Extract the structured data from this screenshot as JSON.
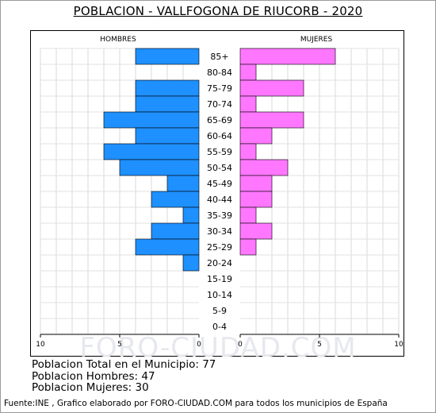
{
  "title": "POBLACION - VALLFOGONA DE RIUCORB - 2020",
  "watermark": "FORO-CIUDAD.COM",
  "stats": {
    "total": "Poblacion Total en el Municipio: 77",
    "men": "Poblacion Hombres: 47",
    "women": "Poblacion Mujeres: 30"
  },
  "footer": "Fuente:INE , Grafico elaborado por FORO-CIUDAD.COM para todos los municipios de España",
  "chart_data": {
    "type": "bar",
    "orientation": "horizontal",
    "title": "POBLACION - VALLFOGONA DE RIUCORB - 2020",
    "categories": [
      "85+",
      "80-84",
      "75-79",
      "70-74",
      "65-69",
      "60-64",
      "55-59",
      "50-54",
      "45-49",
      "40-44",
      "35-39",
      "30-34",
      "25-29",
      "20-24",
      "15-19",
      "10-14",
      "5-9",
      "0-4"
    ],
    "series": [
      {
        "name": "HOMBRES",
        "color": "#1e90ff",
        "values": [
          4,
          0,
          4,
          4,
          6,
          4,
          6,
          5,
          2,
          3,
          1,
          3,
          4,
          1,
          0,
          0,
          0,
          0
        ]
      },
      {
        "name": "MUJERES",
        "color": "#ff77ff",
        "values": [
          6,
          1,
          4,
          1,
          4,
          2,
          1,
          3,
          2,
          2,
          1,
          2,
          1,
          0,
          0,
          0,
          0,
          0
        ]
      }
    ],
    "xlim": [
      0,
      10
    ],
    "x_ticks": [
      "10",
      "5",
      "0",
      "0",
      "5",
      "10"
    ],
    "grid": true,
    "bar_stroke": "#000000"
  }
}
